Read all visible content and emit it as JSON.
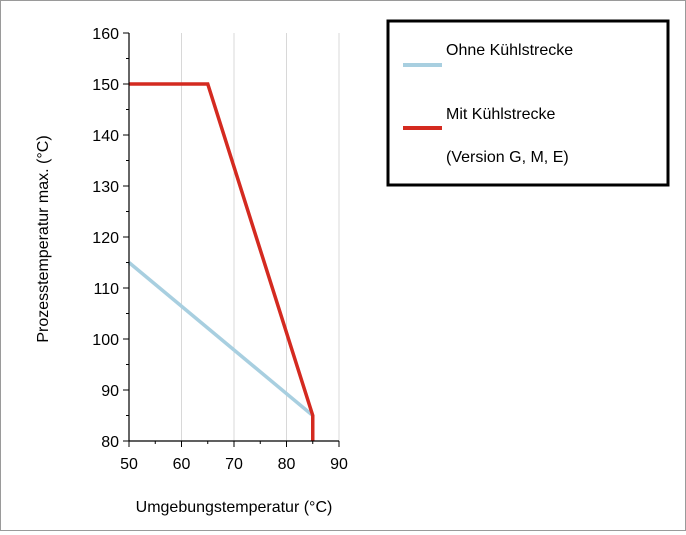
{
  "chart_data": {
    "type": "line",
    "title": "",
    "xlabel": "Umgebungstemperatur (°C)",
    "ylabel": "Prozesstemperatur max. (°C)",
    "xlim": [
      50,
      90
    ],
    "ylim": [
      80,
      160
    ],
    "x_ticks": [
      50,
      60,
      70,
      80,
      90
    ],
    "y_ticks": [
      80,
      90,
      100,
      110,
      120,
      130,
      140,
      150,
      160
    ],
    "x_tick_labels": [
      "50",
      "60",
      "70",
      "80",
      "90"
    ],
    "y_tick_labels": [
      "80",
      "90",
      "100",
      "110",
      "120",
      "130",
      "140",
      "150",
      "160"
    ],
    "grid": true,
    "legend_position": "top-right",
    "series": [
      {
        "name": "Ohne Kühlstrecke",
        "color": "#a8cfe0",
        "x": [
          50,
          85
        ],
        "y": [
          115,
          85
        ]
      },
      {
        "name": "Mit Kühlstrecke",
        "name_line2": "(Version G, M, E)",
        "color": "#d42a20",
        "x": [
          50,
          65,
          85,
          85
        ],
        "y": [
          150,
          150,
          85,
          80
        ]
      }
    ]
  }
}
